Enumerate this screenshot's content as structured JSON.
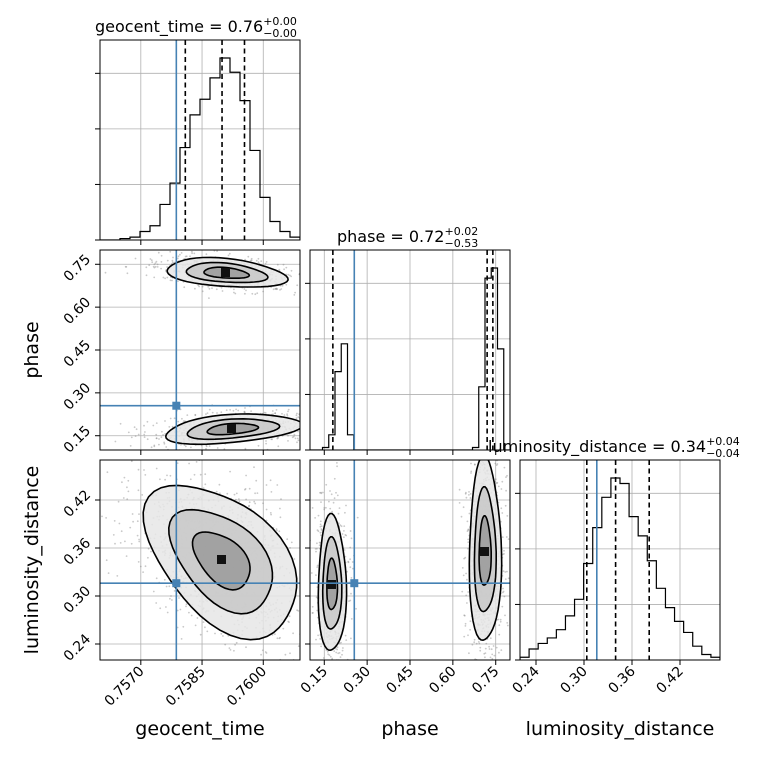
{
  "chart_data": {
    "type": "corner",
    "colors": {
      "truth": "#4682b4",
      "hist": "#000000",
      "points": "#888888",
      "grid": "#b0b0b0"
    },
    "titles": [
      {
        "param": "geocent_time",
        "main": "geocent_time = 0.76",
        "sup": "+0.00",
        "sub": "−0.00"
      },
      {
        "param": "phase",
        "main": "phase = 0.72",
        "sup": "+0.02",
        "sub": "−0.53"
      },
      {
        "param": "luminosity_distance",
        "main": "luminosity_distance = 0.34",
        "sup": "+0.04",
        "sub": "−0.04"
      }
    ],
    "axes": {
      "geocent_time": {
        "label": "geocent_time",
        "lim": [
          0.756,
          0.7609
        ],
        "ticks": [
          0.757,
          0.7585,
          0.76
        ],
        "tick_labels": [
          "0.7570",
          "0.7585",
          "0.7600"
        ]
      },
      "phase": {
        "label": "phase",
        "lim": [
          0.1,
          0.8
        ],
        "ticks": [
          0.15,
          0.3,
          0.45,
          0.6,
          0.75
        ],
        "tick_labels": [
          "0.15",
          "0.30",
          "0.45",
          "0.60",
          "0.75"
        ]
      },
      "luminosity_distance": {
        "label": "luminosity_distance",
        "lim": [
          0.22,
          0.47
        ],
        "ticks": [
          0.24,
          0.3,
          0.36,
          0.42
        ],
        "tick_labels": [
          "0.24",
          "0.30",
          "0.36",
          "0.42"
        ]
      }
    },
    "truths": {
      "geocent_time": 0.75787,
      "phase": 0.255,
      "luminosity_distance": 0.316
    },
    "quantiles": {
      "geocent_time": [
        0.75809,
        0.75899,
        0.75954
      ],
      "phase": [
        0.18,
        0.72,
        0.74
      ],
      "luminosity_distance": [
        0.3035,
        0.3395,
        0.3815
      ]
    },
    "histograms": {
      "geocent_time": {
        "range": [
          0.756,
          0.7609
        ],
        "counts": [
          0,
          0,
          1,
          2,
          6,
          10,
          25,
          40,
          65,
          88,
          99,
          114,
          128,
          118,
          98,
          63,
          30,
          13,
          6,
          2
        ]
      },
      "phase": {
        "range": [
          0.1,
          0.8
        ],
        "counts": [
          0,
          0,
          2,
          12,
          62,
          84,
          12,
          0,
          0,
          0,
          0,
          0,
          0,
          0,
          0,
          0,
          0,
          0,
          0,
          0,
          0,
          0,
          0,
          0,
          0,
          0,
          2,
          50,
          136,
          144,
          80,
          0
        ]
      },
      "luminosity_distance": {
        "range": [
          0.22,
          0.47
        ],
        "counts": [
          1,
          4,
          6,
          8,
          11,
          16,
          22,
          35,
          48,
          59,
          66,
          64,
          52,
          45,
          36,
          26,
          19,
          14,
          10,
          5,
          2,
          1
        ]
      }
    },
    "grid": true
  }
}
